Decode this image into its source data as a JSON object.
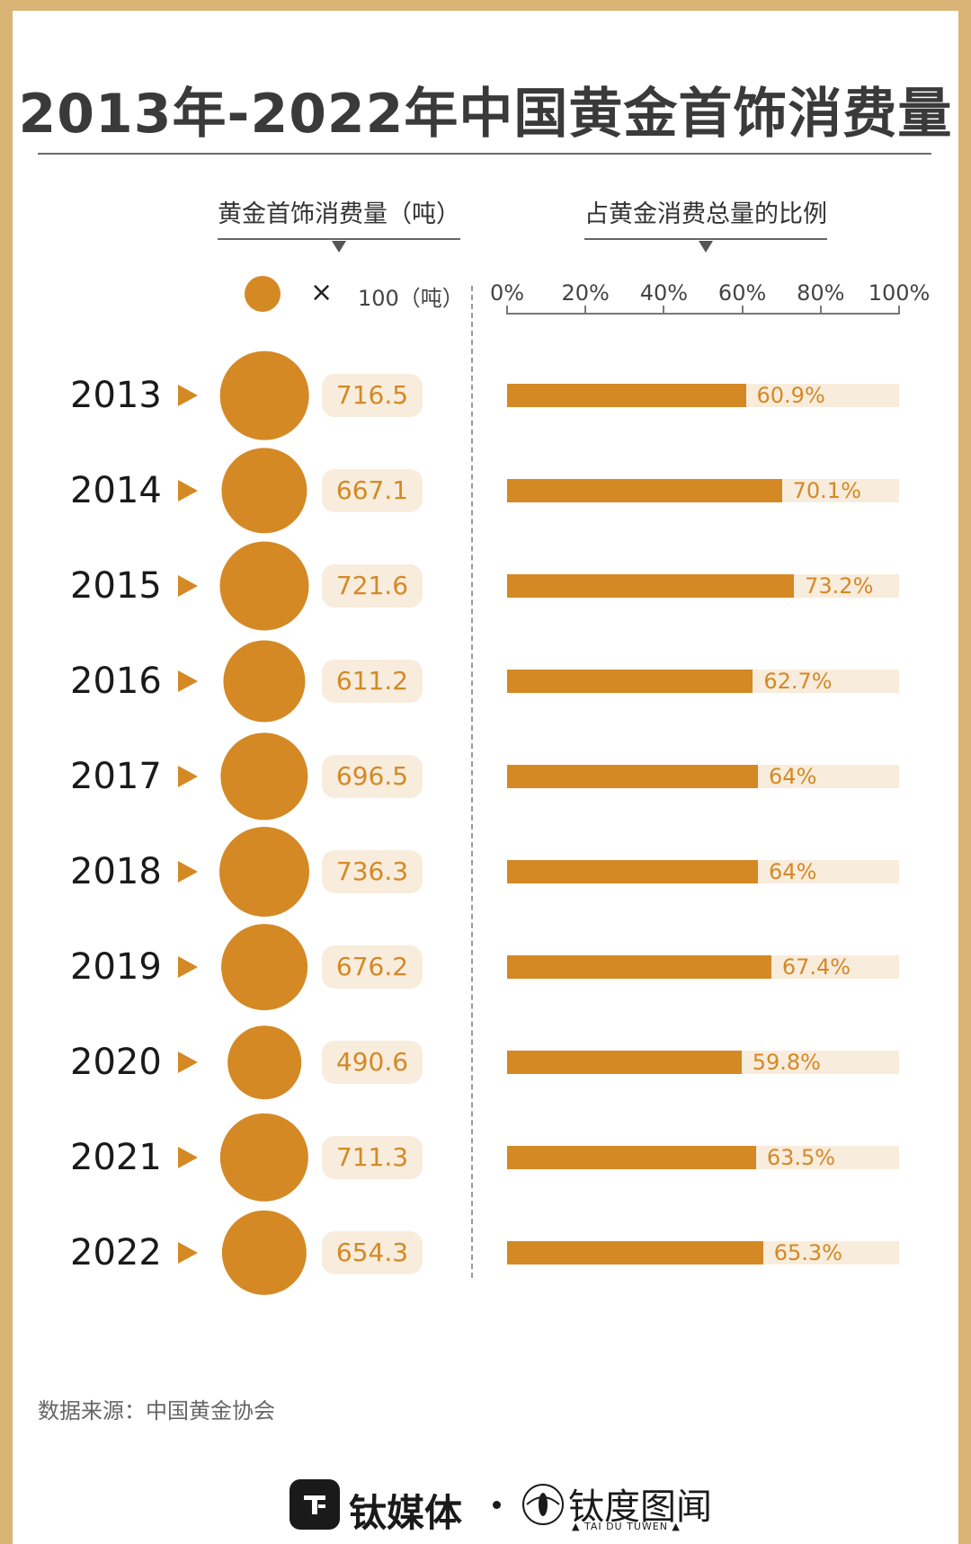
{
  "title": "2013年-2022年中国黄金首饰消费量",
  "left_header": "黄金首饰消费量（吨）",
  "right_header": "占黄金消费总量的比例",
  "legend": {
    "symbol": "×",
    "unit": "100（吨）"
  },
  "colors": {
    "accent": "#d48925",
    "light": "#f8ecdc",
    "frame": "#dab477"
  },
  "chart_data": {
    "type": "bar",
    "categories": [
      "2013",
      "2014",
      "2015",
      "2016",
      "2017",
      "2018",
      "2019",
      "2020",
      "2021",
      "2022"
    ],
    "series": [
      {
        "name": "黄金首饰消费量（吨）",
        "values": [
          716.5,
          667.1,
          721.6,
          611.2,
          696.5,
          736.3,
          676.2,
          490.6,
          711.3,
          654.3
        ],
        "labels": [
          "716.5",
          "667.1",
          "721.6",
          "611.2",
          "696.5",
          "736.3",
          "676.2",
          "490.6",
          "711.3",
          "654.3"
        ]
      },
      {
        "name": "占黄金消费总量的比例",
        "values": [
          60.9,
          70.1,
          73.2,
          62.7,
          64,
          64,
          67.4,
          59.8,
          63.5,
          65.3
        ],
        "labels": [
          "60.9%",
          "70.1%",
          "73.2%",
          "62.7%",
          "64%",
          "64%",
          "67.4%",
          "59.8%",
          "63.5%",
          "65.3%"
        ]
      }
    ],
    "x_ticks": [
      "0%",
      "20%",
      "40%",
      "60%",
      "80%",
      "100%"
    ],
    "xlim": [
      0,
      100
    ]
  },
  "source": "数据来源：中国黄金协会",
  "footer": {
    "brand_left": "钛媒体",
    "brand_right": "钛度图闻",
    "brand_right_sub": "▲ TAI DU TUWEN ▲"
  }
}
